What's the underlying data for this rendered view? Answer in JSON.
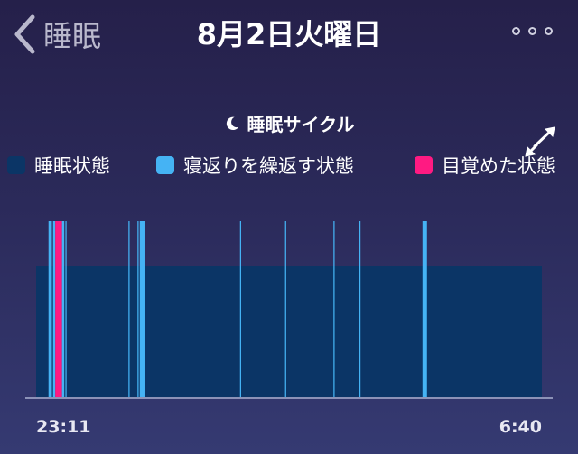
{
  "header": {
    "back_label": "睡眠",
    "title": "8月2日火曜日"
  },
  "section": {
    "title": "睡眠サイクル"
  },
  "legend": {
    "items": [
      {
        "label": "睡眠状態",
        "color": "#0b3566"
      },
      {
        "label": "寝返りを繰返す状態",
        "color": "#45b3f4"
      },
      {
        "label": "目覚めた状態",
        "color": "#ff1a82"
      }
    ]
  },
  "chart_data": {
    "type": "bar",
    "x_start_label": "23:11",
    "x_end_label": "6:40",
    "x_range_minutes": [
      0,
      449
    ],
    "levels": [
      "睡眠状態",
      "寝返りを繰返す状態",
      "目覚めた状態"
    ],
    "segments": [
      {
        "state": "睡眠状態",
        "start": 0,
        "end": 449
      },
      {
        "state": "寝返りを繰返す状態",
        "start": 11,
        "end": 14
      },
      {
        "state": "寝返りを繰返す状態",
        "start": 15,
        "end": 17
      },
      {
        "state": "目覚めた状態",
        "start": 17,
        "end": 23
      },
      {
        "state": "寝返りを繰返す状態",
        "start": 23,
        "end": 25
      },
      {
        "state": "寝返りを繰返す状態",
        "start": 26,
        "end": 27
      },
      {
        "state": "寝返りを繰返す状態",
        "start": 82,
        "end": 83
      },
      {
        "state": "寝返りを繰返す状態",
        "start": 90,
        "end": 91
      },
      {
        "state": "寝返りを繰返す状態",
        "start": 92,
        "end": 97
      },
      {
        "state": "寝返りを繰返す状態",
        "start": 181,
        "end": 182
      },
      {
        "state": "寝返りを繰返す状態",
        "start": 221,
        "end": 222
      },
      {
        "state": "寝返りを繰返す状態",
        "start": 264,
        "end": 265
      },
      {
        "state": "寝返りを繰返す状態",
        "start": 287,
        "end": 288
      },
      {
        "state": "寝返りを繰返す状態",
        "start": 343,
        "end": 347
      }
    ],
    "colors": {
      "睡眠状態": "#0b3566",
      "寝返りを繰返す状態": "#45b3f4",
      "目覚めた状態": "#ff1a82"
    }
  }
}
